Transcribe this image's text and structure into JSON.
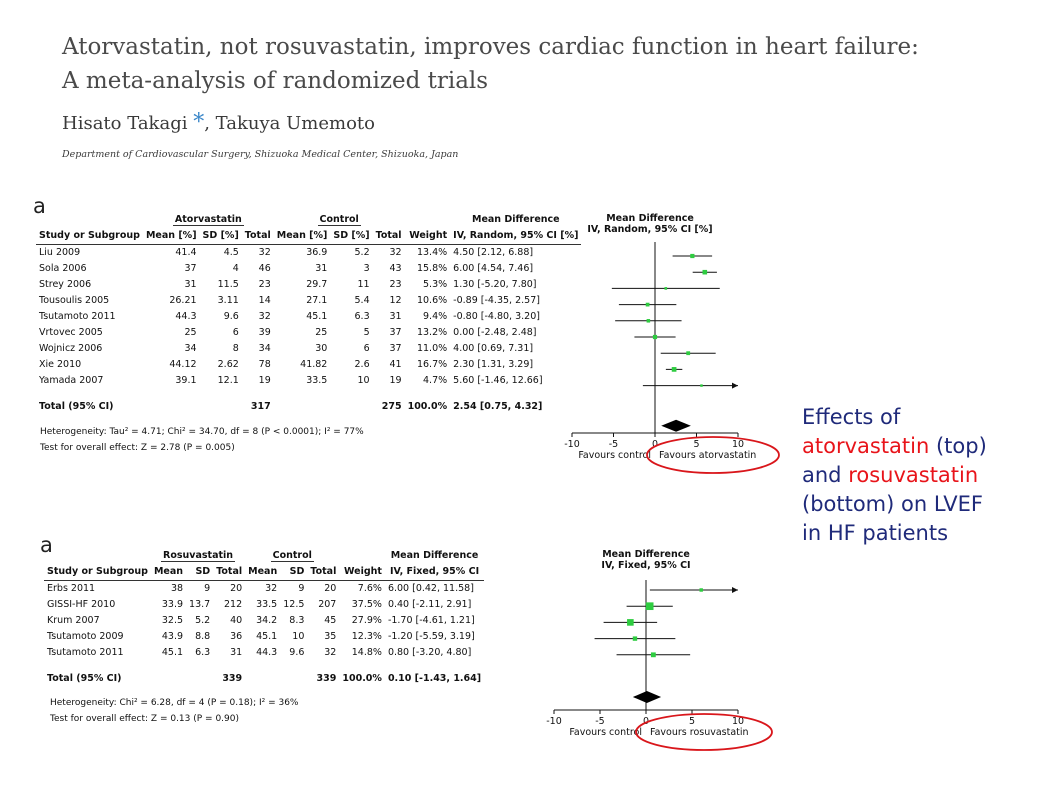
{
  "header": {
    "title_line1": "Atorvastatin, not rosuvastatin, improves cardiac function in heart failure:",
    "title_line2": "A meta-analysis of randomized trials",
    "authors": "Hisato Takagi",
    "star": "*",
    "authors_rest": ", Takuya Umemoto",
    "affiliation": "Department of Cardiovascular Surgery, Shizuoka Medical Center, Shizuoka, Japan"
  },
  "note": {
    "line1": "Effects of",
    "atorva": "atorvastatin",
    "line2_rest": " (top)",
    "line3_pre": "and ",
    "rosuva": "rosuvastatin",
    "line4": "(bottom) on LVEF",
    "line5": "in HF patients"
  },
  "colors": {
    "highlight_circle": "#d9161b",
    "square": "#2ecc40",
    "diamond": "#000000",
    "note_text": "#1f2a7a",
    "note_red": "#e8141a"
  },
  "panels": [
    {
      "label": "a",
      "group1": "Atorvastatin",
      "group2": "Control",
      "md_header1": "Mean Difference",
      "md_header2": "IV, Random, 95% CI",
      "md_header2_unit": " [%]",
      "plot_header1": "Mean Difference",
      "plot_header2": "IV, Random, 95% CI [%]",
      "columns": [
        "Study or Subgroup",
        "Mean [%]",
        "SD [%]",
        "Total",
        "Mean [%]",
        "SD [%]",
        "Total",
        "Weight"
      ],
      "rows": [
        {
          "study": "Liu 2009",
          "m1": "41.4",
          "sd1": "4.5",
          "n1": "32",
          "m2": "36.9",
          "sd2": "5.2",
          "n2": "32",
          "w": "13.4%",
          "ci": "4.50 [2.12, 6.88]",
          "est": 4.5,
          "lo": 2.12,
          "hi": 6.88
        },
        {
          "study": "Sola 2006",
          "m1": "37",
          "sd1": "4",
          "n1": "46",
          "m2": "31",
          "sd2": "3",
          "n2": "43",
          "w": "15.8%",
          "ci": "6.00 [4.54, 7.46]",
          "est": 6.0,
          "lo": 4.54,
          "hi": 7.46
        },
        {
          "study": "Strey 2006",
          "m1": "31",
          "sd1": "11.5",
          "n1": "23",
          "m2": "29.7",
          "sd2": "11",
          "n2": "23",
          "w": "5.3%",
          "ci": "1.30 [-5.20, 7.80]",
          "est": 1.3,
          "lo": -5.2,
          "hi": 7.8
        },
        {
          "study": "Tousoulis 2005",
          "m1": "26.21",
          "sd1": "3.11",
          "n1": "14",
          "m2": "27.1",
          "sd2": "5.4",
          "n2": "12",
          "w": "10.6%",
          "ci": "-0.89 [-4.35, 2.57]",
          "est": -0.89,
          "lo": -4.35,
          "hi": 2.57
        },
        {
          "study": "Tsutamoto 2011",
          "m1": "44.3",
          "sd1": "9.6",
          "n1": "32",
          "m2": "45.1",
          "sd2": "6.3",
          "n2": "31",
          "w": "9.4%",
          "ci": "-0.80 [-4.80, 3.20]",
          "est": -0.8,
          "lo": -4.8,
          "hi": 3.2
        },
        {
          "study": "Vrtovec 2005",
          "m1": "25",
          "sd1": "6",
          "n1": "39",
          "m2": "25",
          "sd2": "5",
          "n2": "37",
          "w": "13.2%",
          "ci": "0.00 [-2.48, 2.48]",
          "est": 0.0,
          "lo": -2.48,
          "hi": 2.48
        },
        {
          "study": "Wojnicz 2006",
          "m1": "34",
          "sd1": "8",
          "n1": "34",
          "m2": "30",
          "sd2": "6",
          "n2": "37",
          "w": "11.0%",
          "ci": "4.00 [0.69, 7.31]",
          "est": 4.0,
          "lo": 0.69,
          "hi": 7.31
        },
        {
          "study": "Xie 2010",
          "m1": "44.12",
          "sd1": "2.62",
          "n1": "78",
          "m2": "41.82",
          "sd2": "2.6",
          "n2": "41",
          "w": "16.7%",
          "ci": "2.30 [1.31, 3.29]",
          "est": 2.3,
          "lo": 1.31,
          "hi": 3.29
        },
        {
          "study": "Yamada 2007",
          "m1": "39.1",
          "sd1": "12.1",
          "n1": "19",
          "m2": "33.5",
          "sd2": "10",
          "n2": "19",
          "w": "4.7%",
          "ci": "5.60 [-1.46, 12.66]",
          "est": 5.6,
          "lo": -1.46,
          "hi": 12.66
        }
      ],
      "total": {
        "label": "Total (95% CI)",
        "n1": "317",
        "n2": "275",
        "w": "100.0%",
        "ci": "2.54 [0.75, 4.32]",
        "est": 2.54,
        "lo": 0.75,
        "hi": 4.32
      },
      "heterogeneity": "Heterogeneity: Tau² = 4.71; Chi² = 34.70, df = 8 (P < 0.0001); I² = 77%",
      "overall": "Test for overall effect: Z = 2.78 (P = 0.005)",
      "axis_ticks": [
        "-10",
        "-5",
        "0",
        "5",
        "10"
      ],
      "favours_left": "Favours control",
      "favours_right": "Favours atorvastatin",
      "xlim": [
        -10,
        10
      ]
    },
    {
      "label": "a",
      "group1": "Rosuvastatin",
      "group2": "Control",
      "md_header1": "Mean Difference",
      "md_header2": "IV, Fixed, 95% CI",
      "md_header2_unit": "",
      "plot_header1": "Mean Difference",
      "plot_header2": "IV, Fixed, 95% CI",
      "columns": [
        "Study or Subgroup",
        "Mean",
        "SD",
        "Total",
        "Mean",
        "SD",
        "Total",
        "Weight"
      ],
      "rows": [
        {
          "study": "Erbs 2011",
          "m1": "38",
          "sd1": "9",
          "n1": "20",
          "m2": "32",
          "sd2": "9",
          "n2": "20",
          "w": "7.6%",
          "ci": "6.00 [0.42, 11.58]",
          "est": 6.0,
          "lo": 0.42,
          "hi": 11.58
        },
        {
          "study": "GISSI-HF 2010",
          "m1": "33.9",
          "sd1": "13.7",
          "n1": "212",
          "m2": "33.5",
          "sd2": "12.5",
          "n2": "207",
          "w": "37.5%",
          "ci": "0.40 [-2.11, 2.91]",
          "est": 0.4,
          "lo": -2.11,
          "hi": 2.91
        },
        {
          "study": "Krum 2007",
          "m1": "32.5",
          "sd1": "5.2",
          "n1": "40",
          "m2": "34.2",
          "sd2": "8.3",
          "n2": "45",
          "w": "27.9%",
          "ci": "-1.70 [-4.61, 1.21]",
          "est": -1.7,
          "lo": -4.61,
          "hi": 1.21
        },
        {
          "study": "Tsutamoto 2009",
          "m1": "43.9",
          "sd1": "8.8",
          "n1": "36",
          "m2": "45.1",
          "sd2": "10",
          "n2": "35",
          "w": "12.3%",
          "ci": "-1.20 [-5.59, 3.19]",
          "est": -1.2,
          "lo": -5.59,
          "hi": 3.19
        },
        {
          "study": "Tsutamoto 2011",
          "m1": "45.1",
          "sd1": "6.3",
          "n1": "31",
          "m2": "44.3",
          "sd2": "9.6",
          "n2": "32",
          "w": "14.8%",
          "ci": "0.80 [-3.20, 4.80]",
          "est": 0.8,
          "lo": -3.2,
          "hi": 4.8
        }
      ],
      "total": {
        "label": "Total (95% CI)",
        "n1": "339",
        "n2": "339",
        "w": "100.0%",
        "ci": "0.10 [-1.43, 1.64]",
        "est": 0.1,
        "lo": -1.43,
        "hi": 1.64
      },
      "heterogeneity": "Heterogeneity: Chi² = 6.28, df = 4 (P = 0.18); I² = 36%",
      "overall": "Test for overall effect: Z = 0.13 (P = 0.90)",
      "axis_ticks": [
        "-10",
        "-5",
        "0",
        "5",
        "10"
      ],
      "favours_left": "Favours control",
      "favours_right": "Favours rosuvastatin",
      "xlim": [
        -10,
        10
      ]
    }
  ]
}
